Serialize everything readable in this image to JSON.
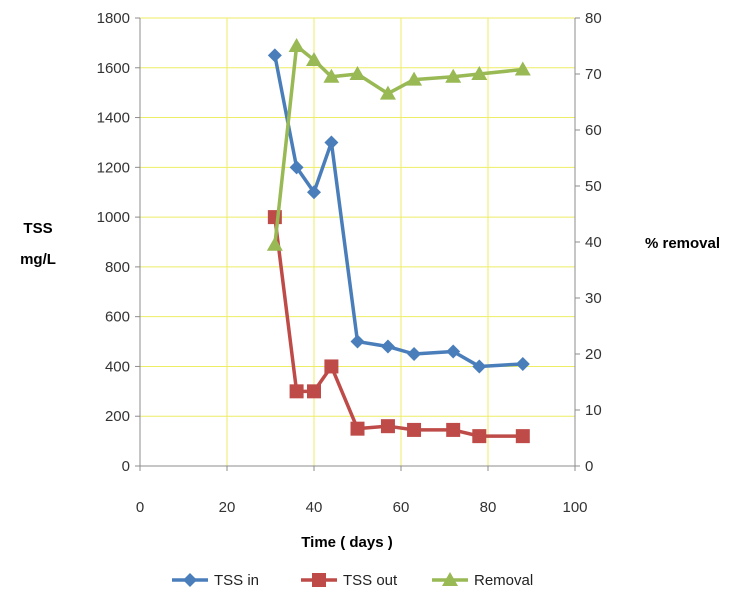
{
  "chart_data": {
    "type": "line",
    "xlabel": "Time ( days )",
    "ylabel_lines": [
      "TSS",
      "mg/L"
    ],
    "y2label": "% removal",
    "xlim": [
      0,
      100
    ],
    "ylim": [
      0,
      1800
    ],
    "y2lim": [
      0,
      80
    ],
    "x_ticks": [
      "0",
      "20",
      "40",
      "60",
      "80",
      "100"
    ],
    "y_ticks": [
      "0",
      "200",
      "400",
      "600",
      "800",
      "1000",
      "1200",
      "1400",
      "1600",
      "1800"
    ],
    "y2_ticks": [
      "0",
      "10",
      "20",
      "30",
      "40",
      "50",
      "60",
      "70",
      "80"
    ],
    "grid": true,
    "legend_position": "bottom",
    "series": [
      {
        "name": "TSS in",
        "axis": "left",
        "color": "#4A7EBB",
        "marker": "diamond",
        "x": [
          31,
          36,
          40,
          44,
          50,
          57,
          63,
          72,
          78,
          88
        ],
        "y": [
          1650,
          1200,
          1100,
          1300,
          500,
          480,
          450,
          460,
          400,
          410
        ]
      },
      {
        "name": "TSS out",
        "axis": "left",
        "color": "#BE4B48",
        "marker": "square",
        "x": [
          31,
          36,
          40,
          44,
          50,
          57,
          63,
          72,
          78,
          88
        ],
        "y": [
          1000,
          300,
          300,
          400,
          150,
          160,
          145,
          145,
          120,
          120
        ]
      },
      {
        "name": "Removal",
        "axis": "right",
        "color": "#98B954",
        "marker": "triangle",
        "x": [
          31,
          36,
          40,
          44,
          50,
          57,
          63,
          72,
          78,
          88
        ],
        "y": [
          39.5,
          75,
          72.5,
          69.5,
          70,
          66.5,
          69,
          69.5,
          70,
          70.8
        ]
      }
    ]
  }
}
